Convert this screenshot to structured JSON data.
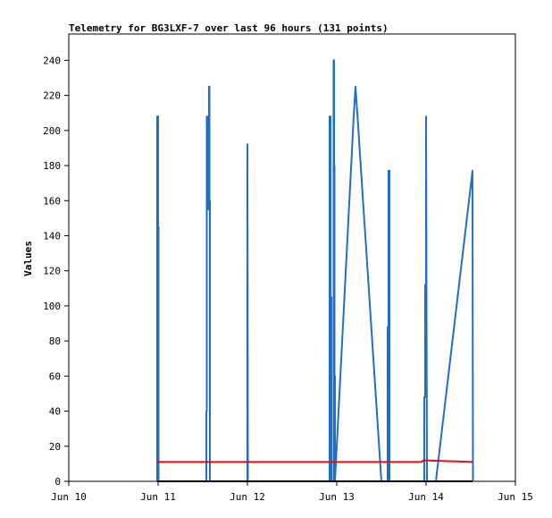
{
  "chart_data": {
    "type": "line",
    "title": "Telemetry for BG3LXF-7 over last 96 hours (131 points)",
    "xlabel": "",
    "ylabel": "Values",
    "x_ticks": [
      "Jun 10",
      "Jun 11",
      "Jun 12",
      "Jun 13",
      "Jun 14",
      "Jun 15"
    ],
    "xlim": [
      0,
      5
    ],
    "ylim": [
      0,
      255
    ],
    "y_ticks": [
      0,
      20,
      40,
      60,
      80,
      100,
      120,
      140,
      160,
      180,
      200,
      220,
      240
    ],
    "grid": false,
    "legend": "none",
    "series": [
      {
        "color": "#1f6fc5",
        "x": [
          0.99,
          0.99,
          1.0,
          1.0,
          1.005,
          1.005,
          1.54,
          1.54,
          1.545,
          1.545,
          1.55,
          1.55,
          1.56,
          1.56,
          1.57,
          1.57,
          1.575,
          1.575,
          1.58,
          1.58,
          2.0,
          2.0,
          2.005,
          2.92,
          2.92,
          2.93,
          2.93,
          2.94,
          2.94,
          2.965,
          2.965,
          2.97,
          2.97,
          2.975,
          2.975,
          2.98,
          2.98,
          3.19,
          3.21,
          3.23,
          3.5,
          3.57,
          3.57,
          3.58,
          3.58,
          3.59,
          3.59,
          3.98,
          3.98,
          3.99,
          3.99,
          4.0,
          4.0,
          4.01,
          4.11,
          4.52,
          4.52,
          4.525
        ],
        "y": [
          0,
          208,
          208,
          145,
          145,
          0,
          0,
          40,
          40,
          208,
          208,
          155,
          155,
          208,
          208,
          225,
          225,
          160,
          160,
          0,
          0,
          192,
          0,
          0,
          208,
          208,
          105,
          105,
          0,
          0,
          240,
          240,
          180,
          180,
          60,
          60,
          0,
          208,
          225,
          210,
          0,
          0,
          88,
          88,
          177,
          177,
          0,
          0,
          48,
          48,
          112,
          112,
          208,
          0,
          0,
          177,
          177,
          0
        ]
      },
      {
        "color": "#e01010",
        "x": [
          0.99,
          3.95,
          3.97,
          4.52
        ],
        "y": [
          11,
          11,
          12,
          11
        ]
      },
      {
        "color": "#000000",
        "x": [
          0.99,
          4.52
        ],
        "y": [
          0,
          0
        ]
      }
    ]
  }
}
